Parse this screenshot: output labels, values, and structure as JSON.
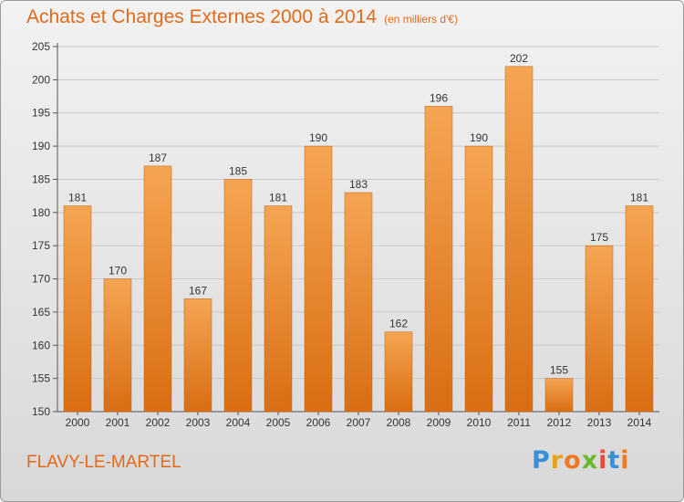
{
  "header": {
    "title": "Achats et Charges Externes 2000 à 2014",
    "subtitle": "(en milliers d'€)"
  },
  "footer": {
    "commune": "FLAVY-LE-MARTEL",
    "logo_text": "Proxiti",
    "logo_colors": [
      "#3a8fd8",
      "#e8a21a",
      "#f0781e",
      "#6ab82e",
      "#e84a3a",
      "#3a8fd8",
      "#f0781e"
    ]
  },
  "colors": {
    "bar_top": "#f5a552",
    "bar_bottom": "#d96d12",
    "grid": "#c8c8c8",
    "axis": "#555555",
    "text": "#333333"
  },
  "chart_data": {
    "type": "bar",
    "categories": [
      "2000",
      "2001",
      "2002",
      "2003",
      "2004",
      "2005",
      "2006",
      "2007",
      "2008",
      "2009",
      "2010",
      "2011",
      "2012",
      "2013",
      "2014"
    ],
    "values": [
      181,
      170,
      187,
      167,
      185,
      181,
      190,
      183,
      162,
      196,
      190,
      202,
      155,
      175,
      181
    ],
    "title": "Achats et Charges Externes 2000 à 2014",
    "subtitle": "(en milliers d'€)",
    "xlabel": "",
    "ylabel": "",
    "ylim": [
      150,
      205
    ],
    "yticks": [
      150,
      155,
      160,
      165,
      170,
      175,
      180,
      185,
      190,
      195,
      200,
      205
    ],
    "grid": true,
    "data_labels": true
  }
}
